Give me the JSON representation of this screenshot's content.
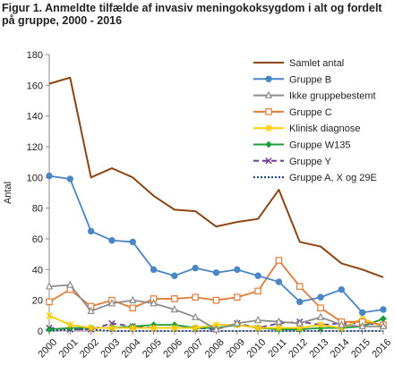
{
  "figure": {
    "title": "Figur 1. Anmeldte tilfælde af invasiv meningokoksygdom i alt og fordelt på gruppe, 2000 - 2016"
  },
  "chart_data": {
    "type": "line",
    "title": "Figur 1. Anmeldte tilfælde af invasiv meningokoksygdom i alt og fordelt på gruppe, 2000 - 2016",
    "xlabel": "",
    "ylabel": "Antal",
    "ylim": [
      0,
      180
    ],
    "yticks": [
      0,
      20,
      40,
      60,
      80,
      100,
      120,
      140,
      160,
      180
    ],
    "grid": false,
    "legend_position": "top-right",
    "categories": [
      "2000",
      "2001",
      "2002",
      "2003",
      "2004",
      "2005",
      "2006",
      "2007",
      "2008",
      "2009",
      "2010",
      "2011",
      "2012",
      "2013",
      "2014",
      "2015",
      "2016"
    ],
    "series": [
      {
        "name": "Samlet antal",
        "color": "#8B4513",
        "marker": "none",
        "dash": "solid",
        "values": [
          161,
          165,
          100,
          106,
          100,
          88,
          79,
          78,
          68,
          71,
          73,
          92,
          58,
          55,
          44,
          40,
          35
        ]
      },
      {
        "name": "Gruppe B",
        "color": "#4a86c5",
        "marker": "circle",
        "dash": "solid",
        "values": [
          101,
          99,
          65,
          59,
          58,
          40,
          36,
          41,
          38,
          40,
          36,
          32,
          19,
          22,
          27,
          12,
          14
        ]
      },
      {
        "name": "Ikke gruppebestemt",
        "color": "#8c8c8c",
        "marker": "triangle",
        "dash": "solid",
        "values": [
          29,
          30,
          13,
          18,
          20,
          18,
          14,
          9,
          1,
          5,
          7,
          6,
          5,
          9,
          4,
          3,
          3
        ]
      },
      {
        "name": "Gruppe C",
        "color": "#e07b39",
        "marker": "square",
        "dash": "solid",
        "values": [
          19,
          27,
          16,
          20,
          15,
          21,
          21,
          22,
          20,
          22,
          26,
          46,
          29,
          15,
          6,
          6,
          4
        ]
      },
      {
        "name": "Klinisk diagnose",
        "color": "#ffcc00",
        "marker": "star",
        "dash": "solid",
        "values": [
          10,
          4,
          2,
          2,
          2,
          2,
          2,
          2,
          4,
          4,
          2,
          2,
          2,
          4,
          2,
          8,
          3
        ]
      },
      {
        "name": "Gruppe W135",
        "color": "#1b9e3a",
        "marker": "diamond",
        "dash": "solid",
        "values": [
          1,
          2,
          2,
          2,
          3,
          4,
          4,
          2,
          2,
          4,
          2,
          1,
          1,
          2,
          2,
          3,
          8
        ]
      },
      {
        "name": "Gruppe Y",
        "color": "#6a3d9a",
        "marker": "x",
        "dash": "dashed",
        "values": [
          2,
          1,
          1,
          5,
          3,
          2,
          2,
          2,
          1,
          5,
          2,
          5,
          6,
          4,
          5,
          5,
          4
        ]
      },
      {
        "name": "Gruppe A, X og 29E",
        "color": "#1f3a7a",
        "marker": "none",
        "dash": "dotted",
        "values": [
          0,
          1,
          1,
          0,
          0,
          0,
          0,
          0,
          0,
          0,
          0,
          0,
          0,
          0,
          0,
          0,
          0
        ]
      }
    ]
  }
}
